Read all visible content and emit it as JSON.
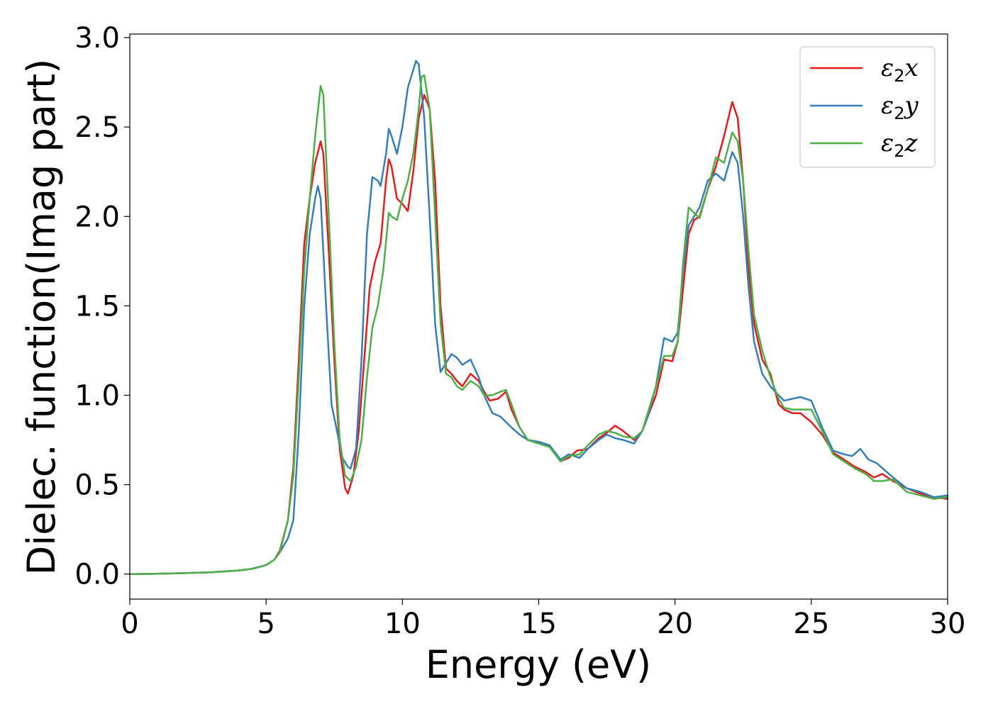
{
  "chart_data": {
    "type": "line",
    "title": "",
    "xlabel": "Energy (eV)",
    "ylabel": "Dielec. function(Imag part)",
    "xlim": [
      0,
      30
    ],
    "ylim": [
      -0.14,
      3.02
    ],
    "xticks": [
      0,
      5,
      10,
      15,
      20,
      25,
      30
    ],
    "yticks": [
      0.0,
      0.5,
      1.0,
      1.5,
      2.0,
      2.5,
      3.0
    ],
    "xtick_labels": [
      "0",
      "5",
      "10",
      "15",
      "20",
      "25",
      "30"
    ],
    "ytick_labels": [
      "0.0",
      "0.5",
      "1.0",
      "1.5",
      "2.0",
      "2.5",
      "3.0"
    ],
    "grid": false,
    "legend_position": "top-right",
    "series": [
      {
        "name": "ε2x",
        "legend_symbol": "ε",
        "legend_sub": "2",
        "legend_var": "x",
        "color": "#e41a1c",
        "points": [
          [
            0,
            0
          ],
          [
            1,
            0.002
          ],
          [
            2,
            0.005
          ],
          [
            3,
            0.01
          ],
          [
            4,
            0.02
          ],
          [
            4.5,
            0.03
          ],
          [
            5,
            0.05
          ],
          [
            5.3,
            0.08
          ],
          [
            5.5,
            0.13
          ],
          [
            5.8,
            0.3
          ],
          [
            6.0,
            0.6
          ],
          [
            6.2,
            1.2
          ],
          [
            6.4,
            1.85
          ],
          [
            6.6,
            2.1
          ],
          [
            6.8,
            2.3
          ],
          [
            7.0,
            2.42
          ],
          [
            7.1,
            2.35
          ],
          [
            7.3,
            1.8
          ],
          [
            7.5,
            1.2
          ],
          [
            7.7,
            0.7
          ],
          [
            7.9,
            0.48
          ],
          [
            8.0,
            0.45
          ],
          [
            8.2,
            0.55
          ],
          [
            8.4,
            0.8
          ],
          [
            8.6,
            1.2
          ],
          [
            8.8,
            1.6
          ],
          [
            9.0,
            1.75
          ],
          [
            9.2,
            1.85
          ],
          [
            9.4,
            2.2
          ],
          [
            9.5,
            2.32
          ],
          [
            9.6,
            2.28
          ],
          [
            9.8,
            2.1
          ],
          [
            10.0,
            2.07
          ],
          [
            10.2,
            2.03
          ],
          [
            10.4,
            2.25
          ],
          [
            10.6,
            2.55
          ],
          [
            10.8,
            2.68
          ],
          [
            11.0,
            2.6
          ],
          [
            11.2,
            2.2
          ],
          [
            11.4,
            1.5
          ],
          [
            11.6,
            1.15
          ],
          [
            11.8,
            1.12
          ],
          [
            12.0,
            1.08
          ],
          [
            12.2,
            1.05
          ],
          [
            12.5,
            1.12
          ],
          [
            12.8,
            1.08
          ],
          [
            13.0,
            1.02
          ],
          [
            13.2,
            0.97
          ],
          [
            13.5,
            0.98
          ],
          [
            13.8,
            1.02
          ],
          [
            14.0,
            0.92
          ],
          [
            14.3,
            0.82
          ],
          [
            14.6,
            0.75
          ],
          [
            15.0,
            0.73
          ],
          [
            15.4,
            0.72
          ],
          [
            15.8,
            0.63
          ],
          [
            16.1,
            0.65
          ],
          [
            16.4,
            0.69
          ],
          [
            16.8,
            0.7
          ],
          [
            17.2,
            0.76
          ],
          [
            17.5,
            0.79
          ],
          [
            17.8,
            0.83
          ],
          [
            18.1,
            0.8
          ],
          [
            18.5,
            0.75
          ],
          [
            18.8,
            0.8
          ],
          [
            19.0,
            0.88
          ],
          [
            19.3,
            1.0
          ],
          [
            19.6,
            1.2
          ],
          [
            19.9,
            1.19
          ],
          [
            20.1,
            1.3
          ],
          [
            20.3,
            1.6
          ],
          [
            20.5,
            1.9
          ],
          [
            20.7,
            1.98
          ],
          [
            20.9,
            2.0
          ],
          [
            21.2,
            2.15
          ],
          [
            21.5,
            2.28
          ],
          [
            21.8,
            2.45
          ],
          [
            22.1,
            2.64
          ],
          [
            22.3,
            2.55
          ],
          [
            22.5,
            2.2
          ],
          [
            22.7,
            1.7
          ],
          [
            22.9,
            1.4
          ],
          [
            23.2,
            1.2
          ],
          [
            23.5,
            1.12
          ],
          [
            23.8,
            0.95
          ],
          [
            24.0,
            0.92
          ],
          [
            24.3,
            0.9
          ],
          [
            24.6,
            0.9
          ],
          [
            25.0,
            0.85
          ],
          [
            25.4,
            0.78
          ],
          [
            25.8,
            0.68
          ],
          [
            26.2,
            0.64
          ],
          [
            26.6,
            0.6
          ],
          [
            27.0,
            0.57
          ],
          [
            27.3,
            0.54
          ],
          [
            27.6,
            0.56
          ],
          [
            28.0,
            0.52
          ],
          [
            28.5,
            0.48
          ],
          [
            29.0,
            0.45
          ],
          [
            29.5,
            0.43
          ],
          [
            30.0,
            0.42
          ]
        ]
      },
      {
        "name": "ε2y",
        "legend_symbol": "ε",
        "legend_sub": "2",
        "legend_var": "y",
        "color": "#377eb8",
        "points": [
          [
            0,
            0
          ],
          [
            1,
            0.002
          ],
          [
            2,
            0.005
          ],
          [
            3,
            0.01
          ],
          [
            4,
            0.02
          ],
          [
            4.5,
            0.03
          ],
          [
            5,
            0.05
          ],
          [
            5.3,
            0.08
          ],
          [
            5.5,
            0.12
          ],
          [
            5.8,
            0.2
          ],
          [
            6.0,
            0.3
          ],
          [
            6.2,
            0.8
          ],
          [
            6.4,
            1.5
          ],
          [
            6.6,
            1.9
          ],
          [
            6.8,
            2.1
          ],
          [
            6.9,
            2.17
          ],
          [
            7.0,
            2.1
          ],
          [
            7.2,
            1.5
          ],
          [
            7.4,
            0.95
          ],
          [
            7.6,
            0.8
          ],
          [
            7.8,
            0.65
          ],
          [
            8.0,
            0.6
          ],
          [
            8.1,
            0.59
          ],
          [
            8.3,
            0.7
          ],
          [
            8.5,
            1.2
          ],
          [
            8.7,
            1.9
          ],
          [
            8.9,
            2.22
          ],
          [
            9.1,
            2.2
          ],
          [
            9.2,
            2.17
          ],
          [
            9.4,
            2.35
          ],
          [
            9.5,
            2.49
          ],
          [
            9.6,
            2.45
          ],
          [
            9.8,
            2.35
          ],
          [
            10.0,
            2.5
          ],
          [
            10.2,
            2.72
          ],
          [
            10.4,
            2.82
          ],
          [
            10.5,
            2.87
          ],
          [
            10.6,
            2.85
          ],
          [
            10.8,
            2.55
          ],
          [
            11.0,
            2.0
          ],
          [
            11.2,
            1.4
          ],
          [
            11.4,
            1.13
          ],
          [
            11.6,
            1.18
          ],
          [
            11.8,
            1.23
          ],
          [
            12.0,
            1.21
          ],
          [
            12.2,
            1.17
          ],
          [
            12.5,
            1.2
          ],
          [
            12.8,
            1.1
          ],
          [
            13.0,
            1.0
          ],
          [
            13.3,
            0.9
          ],
          [
            13.6,
            0.88
          ],
          [
            14.0,
            0.82
          ],
          [
            14.3,
            0.78
          ],
          [
            14.6,
            0.75
          ],
          [
            15.0,
            0.74
          ],
          [
            15.4,
            0.72
          ],
          [
            15.8,
            0.64
          ],
          [
            16.1,
            0.67
          ],
          [
            16.5,
            0.65
          ],
          [
            16.8,
            0.7
          ],
          [
            17.2,
            0.75
          ],
          [
            17.5,
            0.78
          ],
          [
            17.8,
            0.76
          ],
          [
            18.1,
            0.75
          ],
          [
            18.5,
            0.73
          ],
          [
            18.8,
            0.8
          ],
          [
            19.0,
            0.88
          ],
          [
            19.3,
            1.05
          ],
          [
            19.6,
            1.32
          ],
          [
            19.9,
            1.3
          ],
          [
            20.1,
            1.35
          ],
          [
            20.3,
            1.7
          ],
          [
            20.5,
            1.95
          ],
          [
            20.7,
            2.0
          ],
          [
            20.9,
            2.05
          ],
          [
            21.2,
            2.2
          ],
          [
            21.5,
            2.24
          ],
          [
            21.8,
            2.2
          ],
          [
            22.1,
            2.36
          ],
          [
            22.3,
            2.3
          ],
          [
            22.5,
            2.0
          ],
          [
            22.7,
            1.6
          ],
          [
            22.9,
            1.3
          ],
          [
            23.2,
            1.12
          ],
          [
            23.5,
            1.05
          ],
          [
            23.8,
            1.0
          ],
          [
            24.0,
            0.97
          ],
          [
            24.3,
            0.98
          ],
          [
            24.6,
            0.99
          ],
          [
            25.0,
            0.97
          ],
          [
            25.4,
            0.82
          ],
          [
            25.8,
            0.69
          ],
          [
            26.2,
            0.67
          ],
          [
            26.5,
            0.66
          ],
          [
            26.8,
            0.7
          ],
          [
            27.1,
            0.64
          ],
          [
            27.4,
            0.62
          ],
          [
            27.7,
            0.58
          ],
          [
            28.0,
            0.54
          ],
          [
            28.5,
            0.48
          ],
          [
            29.0,
            0.46
          ],
          [
            29.5,
            0.43
          ],
          [
            30.0,
            0.44
          ]
        ]
      },
      {
        "name": "ε2z",
        "legend_symbol": "ε",
        "legend_sub": "2",
        "legend_var": "z",
        "color": "#4daf4a",
        "points": [
          [
            0,
            0
          ],
          [
            1,
            0.002
          ],
          [
            2,
            0.005
          ],
          [
            3,
            0.01
          ],
          [
            4,
            0.02
          ],
          [
            4.5,
            0.03
          ],
          [
            5,
            0.05
          ],
          [
            5.3,
            0.08
          ],
          [
            5.5,
            0.12
          ],
          [
            5.8,
            0.3
          ],
          [
            6.0,
            0.55
          ],
          [
            6.2,
            1.1
          ],
          [
            6.4,
            1.7
          ],
          [
            6.6,
            2.1
          ],
          [
            6.8,
            2.45
          ],
          [
            7.0,
            2.73
          ],
          [
            7.1,
            2.68
          ],
          [
            7.3,
            2.0
          ],
          [
            7.5,
            1.3
          ],
          [
            7.7,
            0.75
          ],
          [
            7.9,
            0.55
          ],
          [
            8.1,
            0.52
          ],
          [
            8.3,
            0.6
          ],
          [
            8.5,
            0.75
          ],
          [
            8.7,
            1.1
          ],
          [
            8.9,
            1.38
          ],
          [
            9.1,
            1.5
          ],
          [
            9.3,
            1.7
          ],
          [
            9.5,
            2.02
          ],
          [
            9.6,
            2.0
          ],
          [
            9.8,
            1.98
          ],
          [
            10.0,
            2.1
          ],
          [
            10.2,
            2.2
          ],
          [
            10.4,
            2.35
          ],
          [
            10.6,
            2.6
          ],
          [
            10.7,
            2.78
          ],
          [
            10.8,
            2.79
          ],
          [
            11.0,
            2.6
          ],
          [
            11.2,
            2.0
          ],
          [
            11.4,
            1.4
          ],
          [
            11.6,
            1.12
          ],
          [
            11.8,
            1.1
          ],
          [
            12.0,
            1.05
          ],
          [
            12.2,
            1.03
          ],
          [
            12.5,
            1.08
          ],
          [
            12.8,
            1.05
          ],
          [
            13.0,
            1.0
          ],
          [
            13.3,
            1.0
          ],
          [
            13.6,
            1.02
          ],
          [
            13.8,
            1.03
          ],
          [
            14.0,
            0.95
          ],
          [
            14.3,
            0.82
          ],
          [
            14.6,
            0.75
          ],
          [
            15.0,
            0.73
          ],
          [
            15.4,
            0.71
          ],
          [
            15.8,
            0.63
          ],
          [
            16.1,
            0.66
          ],
          [
            16.5,
            0.67
          ],
          [
            16.8,
            0.72
          ],
          [
            17.2,
            0.78
          ],
          [
            17.5,
            0.8
          ],
          [
            17.8,
            0.79
          ],
          [
            18.1,
            0.77
          ],
          [
            18.5,
            0.76
          ],
          [
            18.8,
            0.8
          ],
          [
            19.0,
            0.9
          ],
          [
            19.3,
            1.05
          ],
          [
            19.6,
            1.22
          ],
          [
            19.9,
            1.22
          ],
          [
            20.1,
            1.3
          ],
          [
            20.3,
            1.75
          ],
          [
            20.5,
            2.05
          ],
          [
            20.7,
            2.02
          ],
          [
            20.9,
            1.99
          ],
          [
            21.2,
            2.15
          ],
          [
            21.5,
            2.33
          ],
          [
            21.8,
            2.3
          ],
          [
            22.1,
            2.47
          ],
          [
            22.3,
            2.42
          ],
          [
            22.5,
            2.2
          ],
          [
            22.7,
            1.8
          ],
          [
            22.9,
            1.45
          ],
          [
            23.2,
            1.25
          ],
          [
            23.5,
            1.1
          ],
          [
            23.8,
            0.98
          ],
          [
            24.0,
            0.93
          ],
          [
            24.3,
            0.92
          ],
          [
            24.6,
            0.92
          ],
          [
            25.0,
            0.92
          ],
          [
            25.4,
            0.8
          ],
          [
            25.8,
            0.67
          ],
          [
            26.2,
            0.63
          ],
          [
            26.6,
            0.59
          ],
          [
            27.0,
            0.56
          ],
          [
            27.3,
            0.52
          ],
          [
            27.6,
            0.52
          ],
          [
            28.0,
            0.53
          ],
          [
            28.5,
            0.46
          ],
          [
            29.0,
            0.44
          ],
          [
            29.5,
            0.42
          ],
          [
            30.0,
            0.43
          ]
        ]
      }
    ]
  }
}
